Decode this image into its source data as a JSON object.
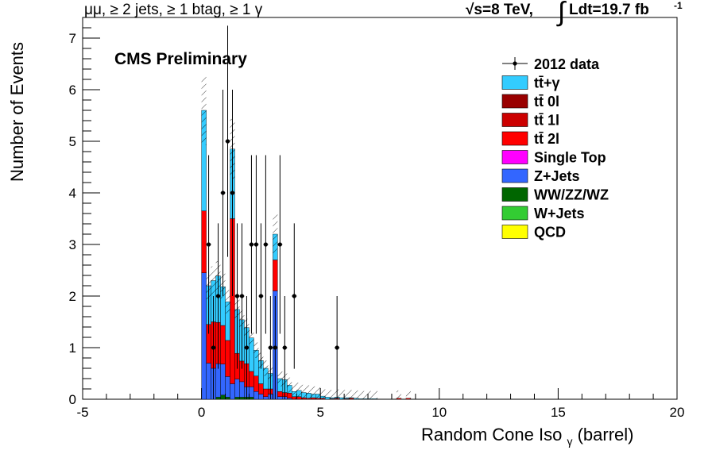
{
  "header": {
    "left": "μμ, ≥ 2 jets, ≥ 1 btag, ≥ 1 γ",
    "energy": "√s=8 TeV,",
    "integral_sign": "∫",
    "lumi": "Ldt=19.7 fb",
    "lumi_exp": "-1"
  },
  "chart_data": {
    "type": "bar",
    "subtype": "stacked-histogram",
    "title": "CMS Preliminary",
    "xlabel": "Random Cone Iso",
    "xlabel_sub": "γ",
    "xlabel_suffix": "(barrel)",
    "ylabel": "Number of Events",
    "xlim": [
      -5,
      20
    ],
    "ylim": [
      0,
      7.4
    ],
    "xticks": [
      -5,
      0,
      5,
      10,
      15,
      20
    ],
    "xtick_labels": [
      "-5",
      "0",
      "5",
      "10",
      "15",
      "20"
    ],
    "yticks": [
      0,
      1,
      2,
      3,
      4,
      5,
      6,
      7
    ],
    "ytick_labels": [
      "0",
      "1",
      "2",
      "3",
      "4",
      "5",
      "6",
      "7"
    ],
    "bin_width": 0.2,
    "bin_lo": [
      0.0,
      0.2,
      0.4,
      0.6,
      0.8,
      1.0,
      1.2,
      1.4,
      1.6,
      1.8,
      2.0,
      2.2,
      2.4,
      2.6,
      2.8,
      3.0,
      3.2,
      3.4,
      3.6,
      3.8,
      4.0,
      4.2,
      4.4,
      4.6,
      4.8,
      5.0,
      5.2,
      5.4,
      5.6,
      5.8,
      6.0,
      6.2,
      6.4,
      6.6,
      6.8,
      7.0,
      7.2,
      7.4,
      7.6,
      7.8,
      8.0,
      8.2,
      8.4,
      8.6,
      8.8
    ],
    "legend_position": "top-right",
    "series": [
      {
        "name": "QCD",
        "legend_label": "QCD",
        "color": "#ffff00",
        "values": [
          0,
          0,
          0,
          0,
          0,
          0,
          0,
          0,
          0,
          0,
          0,
          0,
          0,
          0,
          0,
          0,
          0,
          0,
          0,
          0,
          0,
          0,
          0,
          0,
          0,
          0,
          0,
          0,
          0,
          0,
          0,
          0,
          0,
          0,
          0,
          0,
          0,
          0,
          0,
          0,
          0,
          0,
          0,
          0,
          0
        ]
      },
      {
        "name": "W+Jets",
        "legend_label": "W+Jets",
        "color": "#33cc33",
        "values": [
          0,
          0,
          0,
          0,
          0,
          0,
          0,
          0,
          0,
          0,
          0,
          0,
          0,
          0,
          0,
          0,
          0,
          0,
          0,
          0,
          0,
          0,
          0,
          0,
          0,
          0,
          0,
          0,
          0,
          0,
          0,
          0,
          0,
          0,
          0,
          0,
          0,
          0,
          0,
          0,
          0,
          0,
          0,
          0,
          0
        ]
      },
      {
        "name": "WW/ZZ/WZ",
        "legend_label": "WW/ZZ/WZ",
        "color": "#006600",
        "values": [
          0,
          0,
          0,
          0.04,
          0.08,
          0.04,
          0,
          0.04,
          0.04,
          0.04,
          0.04,
          0,
          0,
          0,
          0,
          0,
          0,
          0,
          0,
          0,
          0,
          0,
          0,
          0,
          0,
          0,
          0,
          0,
          0,
          0,
          0,
          0,
          0,
          0,
          0,
          0,
          0,
          0,
          0,
          0,
          0,
          0,
          0,
          0,
          0
        ]
      },
      {
        "name": "Z+Jets",
        "legend_label": "Z+Jets",
        "color": "#3366ff",
        "values": [
          2.45,
          0.7,
          0.6,
          0.65,
          0.6,
          0.4,
          0.3,
          0.35,
          0.3,
          0.2,
          0.2,
          0.15,
          0.1,
          0.05,
          0.1,
          2.1,
          0.05,
          0.05,
          0.02,
          0,
          0,
          0,
          0,
          0,
          0,
          0,
          0,
          0,
          0,
          0,
          0,
          0,
          0,
          0,
          0,
          0,
          0,
          0,
          0,
          0,
          0,
          0,
          0,
          0,
          0
        ]
      },
      {
        "name": "Single Top",
        "legend_label": "Single Top",
        "color": "#ff00ff",
        "values": [
          0,
          0,
          0,
          0,
          0,
          0,
          0,
          0,
          0,
          0,
          0,
          0,
          0,
          0,
          0,
          0,
          0,
          0,
          0,
          0,
          0,
          0,
          0,
          0,
          0,
          0,
          0,
          0,
          0,
          0,
          0,
          0,
          0,
          0,
          0,
          0,
          0,
          0,
          0,
          0,
          0,
          0,
          0,
          0,
          0
        ]
      },
      {
        "name": "tt 2l",
        "legend_label": "tt̄ 2l",
        "color": "#ff0000",
        "values": [
          1.2,
          0.75,
          0.9,
          0.8,
          0.75,
          0.7,
          3.2,
          0.5,
          0.4,
          0.45,
          0.3,
          0.3,
          0.2,
          0.15,
          0.1,
          0.6,
          0.1,
          0.08,
          0.1,
          0.05,
          0.05,
          0.03,
          0.02,
          0.03,
          0.02,
          0.02,
          0,
          0.01,
          0.02,
          0,
          0.01,
          0.02,
          0,
          0,
          0,
          0,
          0,
          0,
          0,
          0,
          0,
          0.02,
          0,
          0.02,
          0
        ]
      },
      {
        "name": "tt 1l",
        "legend_label": "tt̄ 1l",
        "color": "#cc0000",
        "values": [
          0,
          0,
          0,
          0,
          0,
          0,
          0,
          0,
          0,
          0,
          0,
          0,
          0,
          0,
          0,
          0,
          0,
          0,
          0,
          0,
          0,
          0,
          0,
          0,
          0,
          0,
          0,
          0,
          0,
          0,
          0,
          0,
          0,
          0,
          0,
          0,
          0,
          0,
          0,
          0,
          0,
          0,
          0,
          0,
          0
        ]
      },
      {
        "name": "tt 0l",
        "legend_label": "tt̄ 0l",
        "color": "#990000",
        "values": [
          0,
          0,
          0,
          0,
          0,
          0,
          0,
          0,
          0,
          0,
          0,
          0,
          0,
          0,
          0,
          0,
          0,
          0,
          0,
          0,
          0,
          0,
          0,
          0,
          0,
          0,
          0,
          0,
          0,
          0,
          0,
          0,
          0,
          0,
          0,
          0,
          0,
          0,
          0,
          0,
          0,
          0,
          0,
          0,
          0
        ]
      },
      {
        "name": "tt+gamma",
        "legend_label": "tt̄+γ",
        "color": "#33ccff",
        "values": [
          1.95,
          0.75,
          0.8,
          0.9,
          0.75,
          0.75,
          1.35,
          0.85,
          0.8,
          0.7,
          0.65,
          0.5,
          0.45,
          0.4,
          0.3,
          0.5,
          0.25,
          0.25,
          0.15,
          0.1,
          0.12,
          0.1,
          0.1,
          0.07,
          0.08,
          0.04,
          0.04,
          0.02,
          0.02,
          0.03,
          0.02,
          0.01,
          0.02,
          0.01,
          0.01,
          0.01,
          0.01,
          0,
          0,
          0,
          0,
          0,
          0,
          0,
          0
        ]
      }
    ],
    "data_points": {
      "name": "2012 data",
      "legend_label": "2012 data",
      "x": [
        0.3,
        0.5,
        0.7,
        0.9,
        1.1,
        1.3,
        1.5,
        1.7,
        1.9,
        2.1,
        2.3,
        2.5,
        2.7,
        2.9,
        3.1,
        3.3,
        3.5,
        3.9,
        5.7
      ],
      "y": [
        3,
        1,
        2,
        4,
        5,
        4,
        2,
        2,
        1,
        3,
        3,
        2,
        3,
        1,
        1,
        3,
        1,
        2,
        1
      ],
      "err": [
        1.73,
        1,
        1.41,
        2,
        2.24,
        2,
        1.41,
        1.41,
        1,
        1.73,
        1.73,
        1.41,
        1.73,
        1,
        1,
        1.73,
        1,
        1.41,
        1
      ]
    }
  }
}
